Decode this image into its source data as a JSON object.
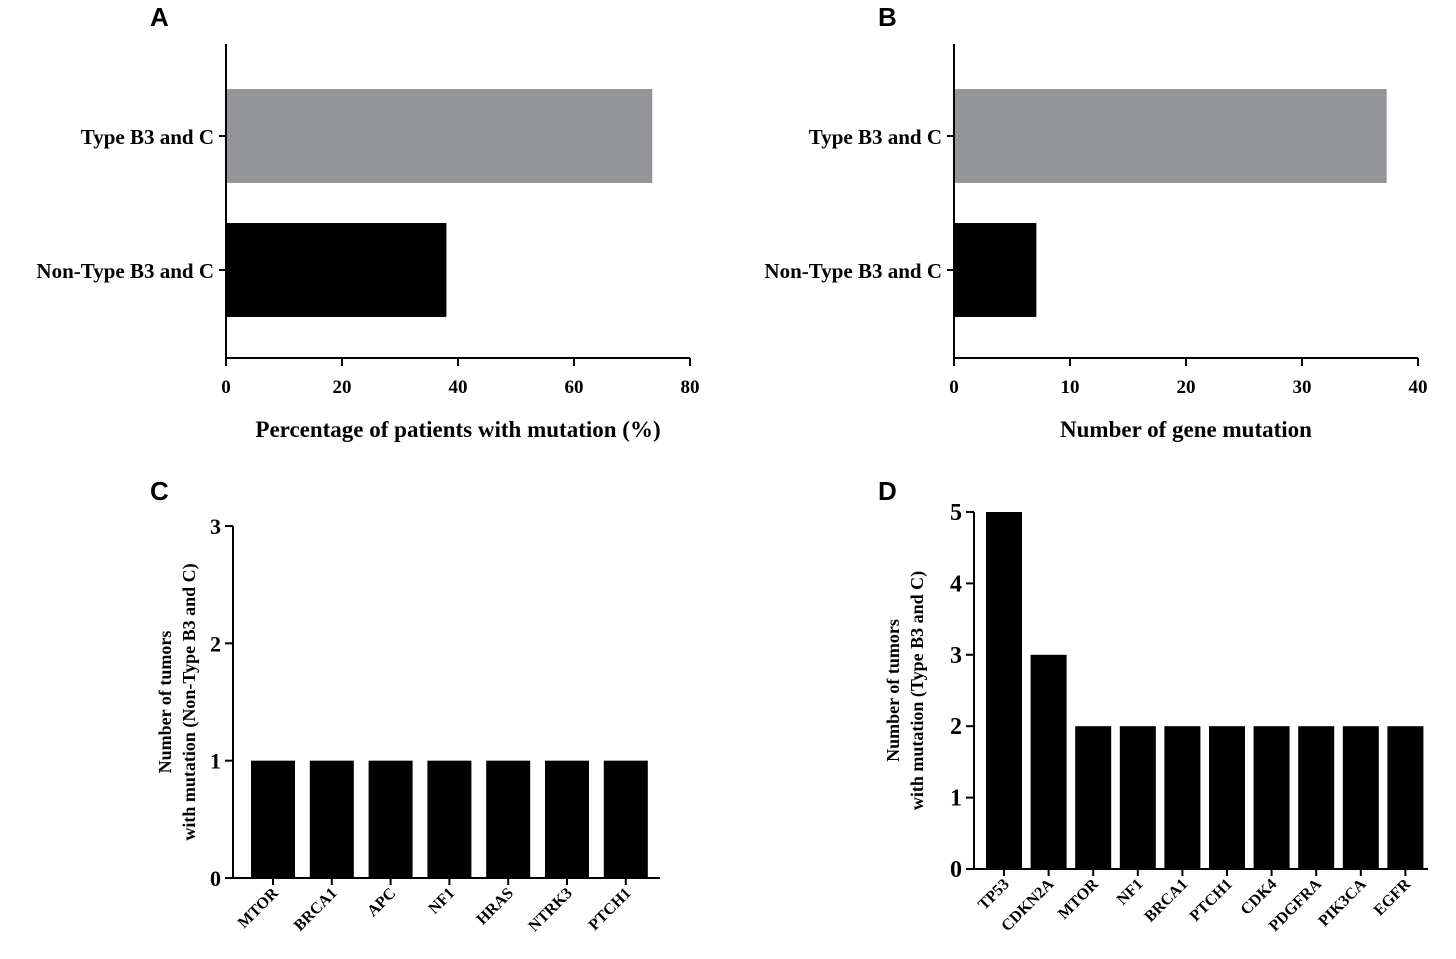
{
  "colors": {
    "axis": "#000000",
    "bar_dark": "#000000",
    "bar_gray": "#939598"
  },
  "chart_data": [
    {
      "id": "A",
      "panel_label": "A",
      "type": "bar",
      "orientation": "horizontal",
      "categories": [
        "Type B3 and C",
        "Non-Type B3 and C"
      ],
      "values": [
        73.5,
        38
      ],
      "colors": [
        "#939598",
        "#000000"
      ],
      "xlabel": "Percentage of patients with mutation (%)",
      "ylabel": "",
      "xlim": [
        0,
        80
      ],
      "xticks": [
        "0",
        "20",
        "40",
        "60",
        "80"
      ],
      "tick_values": [
        0,
        20,
        40,
        60,
        80
      ],
      "grid": false
    },
    {
      "id": "B",
      "panel_label": "B",
      "type": "bar",
      "orientation": "horizontal",
      "categories": [
        "Type B3 and C",
        "Non-Type B3 and C"
      ],
      "values": [
        37.3,
        7.1
      ],
      "colors": [
        "#939598",
        "#000000"
      ],
      "xlabel": "Number of gene mutation",
      "ylabel": "",
      "xlim": [
        0,
        40
      ],
      "xticks": [
        "0",
        "10",
        "20",
        "30",
        "40"
      ],
      "tick_values": [
        0,
        10,
        20,
        30,
        40
      ],
      "grid": false
    },
    {
      "id": "C",
      "panel_label": "C",
      "type": "bar",
      "orientation": "vertical",
      "categories": [
        "MTOR",
        "BRCA1",
        "APC",
        "NF1",
        "HRAS",
        "NTRK3",
        "PTCH1"
      ],
      "values": [
        1,
        1,
        1,
        1,
        1,
        1,
        1
      ],
      "ylabel_lines": [
        "Number of tumors",
        "with mutation (Non-Type B3 and C)"
      ],
      "xlabel": "",
      "ylim": [
        0,
        3
      ],
      "yticks": [
        "0",
        "1",
        "2",
        "3"
      ],
      "tick_values": [
        0,
        1,
        2,
        3
      ],
      "grid": false
    },
    {
      "id": "D",
      "panel_label": "D",
      "type": "bar",
      "orientation": "vertical",
      "categories": [
        "TP53",
        "CDKN2A",
        "MTOR",
        "NF1",
        "BRCA1",
        "PTCH1",
        "CDK4",
        "PDGFRA",
        "PIK3CA",
        "EGFR"
      ],
      "values": [
        5,
        3,
        2,
        2,
        2,
        2,
        2,
        2,
        2,
        2
      ],
      "ylabel_lines": [
        "Number of tumors",
        "with mutation (Type B3 and C)"
      ],
      "xlabel": "",
      "ylim": [
        0,
        5
      ],
      "yticks": [
        "0",
        "1",
        "2",
        "3",
        "4",
        "5"
      ],
      "tick_values": [
        0,
        1,
        2,
        3,
        4,
        5
      ],
      "grid": false
    }
  ]
}
